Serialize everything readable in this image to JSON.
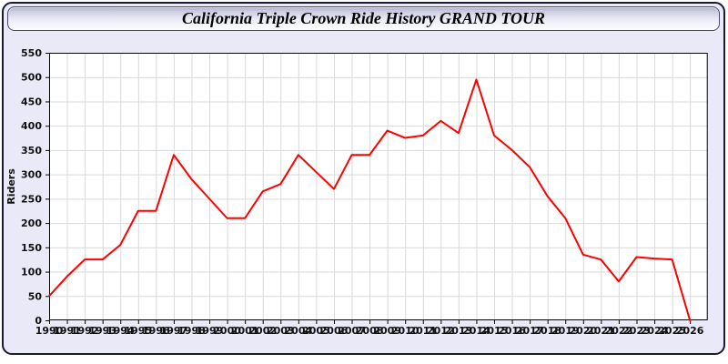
{
  "window": {
    "title": "California Triple Crown Ride History GRAND TOUR"
  },
  "colors": {
    "window_bg": "#e9e9f8",
    "window_border": "#1b1b30",
    "plot_bg": "#ffffff",
    "grid": "#d9d9d9",
    "axis": "#000000",
    "tick_label": "#111111",
    "line": "#ff0000"
  },
  "chart_data": {
    "type": "line",
    "title": "California Triple Crown Ride History GRAND TOUR",
    "xlabel": "",
    "ylabel": "Riders",
    "categories": [
      1990,
      1991,
      1992,
      1993,
      1994,
      1995,
      1996,
      1997,
      1998,
      1999,
      2000,
      2001,
      2002,
      2003,
      2004,
      2005,
      2006,
      2007,
      2008,
      2009,
      2010,
      2011,
      2012,
      2013,
      2014,
      2015,
      2016,
      2017,
      2018,
      2019,
      2020,
      2021,
      2022,
      2023,
      2024,
      2025,
      2026
    ],
    "series": [
      {
        "name": "Riders",
        "color": "#ff0000",
        "values": [
          50,
          90,
          125,
          125,
          155,
          225,
          225,
          340,
          290,
          250,
          210,
          210,
          265,
          280,
          340,
          305,
          270,
          340,
          340,
          390,
          375,
          380,
          410,
          385,
          495,
          380,
          350,
          315,
          255,
          210,
          135,
          125,
          80,
          130,
          127,
          125,
          0
        ]
      }
    ],
    "ylim": [
      0,
      550
    ],
    "ytick_step": 50,
    "grid": true,
    "legend": "none"
  }
}
